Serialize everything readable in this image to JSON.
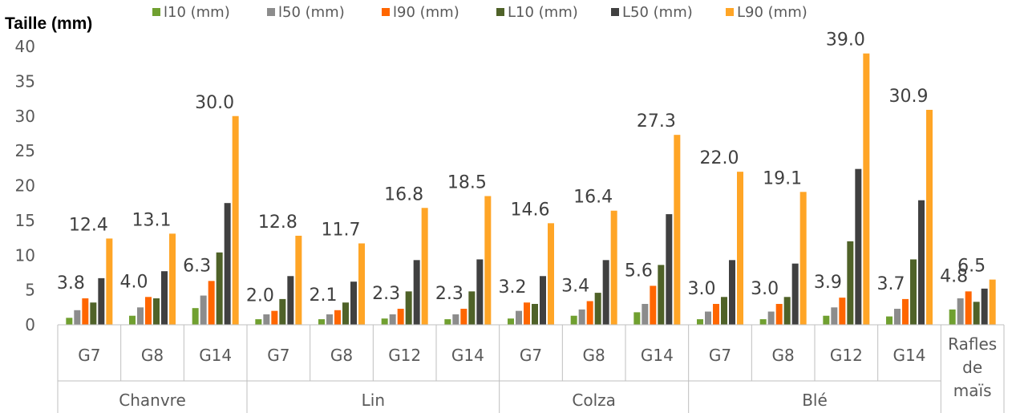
{
  "chart_data": {
    "type": "bar",
    "ylabel": "Taille (mm)",
    "ylim": [
      0,
      40
    ],
    "yticks": [
      "0",
      "5",
      "10",
      "15",
      "20",
      "25",
      "30",
      "35",
      "40"
    ],
    "legend_position": "top",
    "groups": [
      {
        "name": "Chanvre",
        "categories": [
          "G7",
          "G8",
          "G14"
        ]
      },
      {
        "name": "Lin",
        "categories": [
          "G7",
          "G8",
          "G12",
          "G14"
        ]
      },
      {
        "name": "Colza",
        "categories": [
          "G7",
          "G8",
          "G14"
        ]
      },
      {
        "name": "Blé",
        "categories": [
          "G7",
          "G8",
          "G12",
          "G14"
        ]
      },
      {
        "name": "",
        "categories": [
          "Rafles de maïs"
        ]
      }
    ],
    "categories": [
      "Chanvre G7",
      "Chanvre G8",
      "Chanvre G14",
      "Lin G7",
      "Lin G8",
      "Lin G12",
      "Lin G14",
      "Colza G7",
      "Colza G8",
      "Colza G14",
      "Blé G7",
      "Blé G8",
      "Blé G12",
      "Blé G14",
      "Rafles de maïs"
    ],
    "series": [
      {
        "name": "l10 (mm)",
        "color": "#70a030",
        "values": [
          1.0,
          1.3,
          2.4,
          0.8,
          0.8,
          0.9,
          0.8,
          0.9,
          1.3,
          1.8,
          0.8,
          0.8,
          1.3,
          1.2,
          2.2
        ]
      },
      {
        "name": "l50 (mm)",
        "color": "#8c8c8c",
        "values": [
          2.1,
          2.5,
          4.2,
          1.5,
          1.5,
          1.5,
          1.5,
          2.0,
          2.2,
          3.0,
          1.9,
          1.9,
          2.5,
          2.3,
          3.8
        ]
      },
      {
        "name": "l90 (mm)",
        "color": "#ff6600",
        "values": [
          3.8,
          4.0,
          6.3,
          2.0,
          2.1,
          2.3,
          2.3,
          3.2,
          3.4,
          5.6,
          3.0,
          3.0,
          3.9,
          3.7,
          4.8
        ]
      },
      {
        "name": "L10 (mm)",
        "color": "#4f6228",
        "values": [
          3.2,
          3.8,
          10.4,
          3.7,
          3.2,
          4.8,
          4.8,
          3.0,
          4.6,
          8.6,
          4.0,
          4.0,
          12.0,
          9.4,
          3.3
        ]
      },
      {
        "name": "L50 (mm)",
        "color": "#404040",
        "values": [
          6.7,
          7.7,
          17.5,
          7.0,
          6.2,
          9.3,
          9.4,
          7.0,
          9.3,
          15.9,
          9.3,
          8.8,
          22.4,
          17.9,
          5.2
        ]
      },
      {
        "name": "L90 (mm)",
        "color": "#ffa526",
        "values": [
          12.4,
          13.1,
          30.0,
          12.8,
          11.7,
          16.8,
          18.5,
          14.6,
          16.4,
          27.3,
          22.0,
          19.1,
          39.0,
          30.9,
          6.5
        ]
      }
    ],
    "data_labels": {
      "l90": [
        "3.8",
        "4.0",
        "6.3",
        "2.0",
        "2.1",
        "2.3",
        "2.3",
        "3.2",
        "3.4",
        "5.6",
        "3.0",
        "3.0",
        "3.9",
        "3.7",
        "4.8"
      ],
      "L90": [
        "12.4",
        "13.1",
        "30.0",
        "12.8",
        "11.7",
        "16.8",
        "18.5",
        "14.6",
        "16.4",
        "27.3",
        "22.0",
        "19.1",
        "39.0",
        "30.9",
        "6.5"
      ]
    },
    "tick_labels": [
      [
        "G7"
      ],
      [
        "G8"
      ],
      [
        "G14"
      ],
      [
        "G7"
      ],
      [
        "G8"
      ],
      [
        "G12"
      ],
      [
        "G14"
      ],
      [
        "G7"
      ],
      [
        "G8"
      ],
      [
        "G14"
      ],
      [
        "G7"
      ],
      [
        "G8"
      ],
      [
        "G12"
      ],
      [
        "G14"
      ],
      [
        "Rafles",
        "de",
        "maïs"
      ]
    ]
  }
}
